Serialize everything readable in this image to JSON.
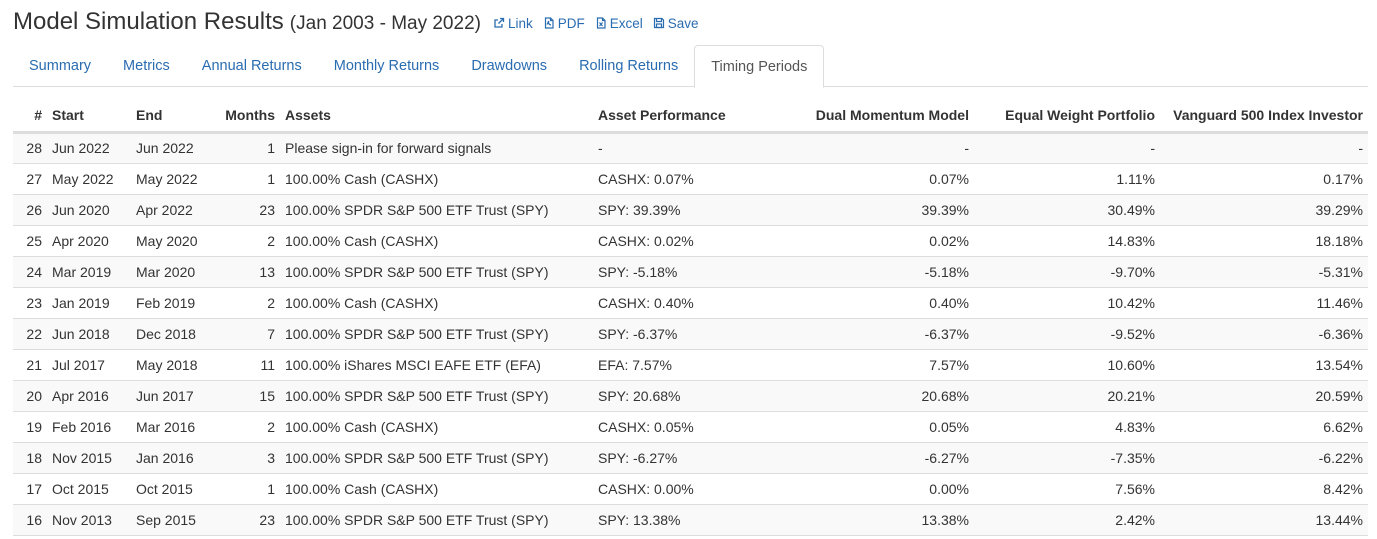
{
  "header": {
    "title": "Model Simulation Results",
    "range": "(Jan 2003 - May 2022)",
    "actions": [
      {
        "label": "Link",
        "icon": "external-link-icon"
      },
      {
        "label": "PDF",
        "icon": "pdf-file-icon"
      },
      {
        "label": "Excel",
        "icon": "excel-file-icon"
      },
      {
        "label": "Save",
        "icon": "floppy-disk-icon"
      }
    ]
  },
  "tabs": [
    {
      "label": "Summary",
      "active": false
    },
    {
      "label": "Metrics",
      "active": false
    },
    {
      "label": "Annual Returns",
      "active": false
    },
    {
      "label": "Monthly Returns",
      "active": false
    },
    {
      "label": "Drawdowns",
      "active": false
    },
    {
      "label": "Rolling Returns",
      "active": false
    },
    {
      "label": "Timing Periods",
      "active": true
    }
  ],
  "table": {
    "columns": [
      "#",
      "Start",
      "End",
      "Months",
      "Assets",
      "Asset Performance",
      "Dual Momentum Model",
      "Equal Weight Portfolio",
      "Vanguard 500 Index Investor"
    ],
    "rows": [
      [
        "28",
        "Jun 2022",
        "Jun 2022",
        "1",
        "Please sign-in for forward signals",
        "-",
        "-",
        "-",
        "-"
      ],
      [
        "27",
        "May 2022",
        "May 2022",
        "1",
        "100.00% Cash (CASHX)",
        "CASHX: 0.07%",
        "0.07%",
        "1.11%",
        "0.17%"
      ],
      [
        "26",
        "Jun 2020",
        "Apr 2022",
        "23",
        "100.00% SPDR S&P 500 ETF Trust (SPY)",
        "SPY: 39.39%",
        "39.39%",
        "30.49%",
        "39.29%"
      ],
      [
        "25",
        "Apr 2020",
        "May 2020",
        "2",
        "100.00% Cash (CASHX)",
        "CASHX: 0.02%",
        "0.02%",
        "14.83%",
        "18.18%"
      ],
      [
        "24",
        "Mar 2019",
        "Mar 2020",
        "13",
        "100.00% SPDR S&P 500 ETF Trust (SPY)",
        "SPY: -5.18%",
        "-5.18%",
        "-9.70%",
        "-5.31%"
      ],
      [
        "23",
        "Jan 2019",
        "Feb 2019",
        "2",
        "100.00% Cash (CASHX)",
        "CASHX: 0.40%",
        "0.40%",
        "10.42%",
        "11.46%"
      ],
      [
        "22",
        "Jun 2018",
        "Dec 2018",
        "7",
        "100.00% SPDR S&P 500 ETF Trust (SPY)",
        "SPY: -6.37%",
        "-6.37%",
        "-9.52%",
        "-6.36%"
      ],
      [
        "21",
        "Jul 2017",
        "May 2018",
        "11",
        "100.00% iShares MSCI EAFE ETF (EFA)",
        "EFA: 7.57%",
        "7.57%",
        "10.60%",
        "13.54%"
      ],
      [
        "20",
        "Apr 2016",
        "Jun 2017",
        "15",
        "100.00% SPDR S&P 500 ETF Trust (SPY)",
        "SPY: 20.68%",
        "20.68%",
        "20.21%",
        "20.59%"
      ],
      [
        "19",
        "Feb 2016",
        "Mar 2016",
        "2",
        "100.00% Cash (CASHX)",
        "CASHX: 0.05%",
        "0.05%",
        "4.83%",
        "6.62%"
      ],
      [
        "18",
        "Nov 2015",
        "Jan 2016",
        "3",
        "100.00% SPDR S&P 500 ETF Trust (SPY)",
        "SPY: -6.27%",
        "-6.27%",
        "-7.35%",
        "-6.22%"
      ],
      [
        "17",
        "Oct 2015",
        "Oct 2015",
        "1",
        "100.00% Cash (CASHX)",
        "CASHX: 0.00%",
        "0.00%",
        "7.56%",
        "8.42%"
      ],
      [
        "16",
        "Nov 2013",
        "Sep 2015",
        "23",
        "100.00% SPDR S&P 500 ETF Trust (SPY)",
        "SPY: 13.38%",
        "13.38%",
        "2.42%",
        "13.44%"
      ]
    ]
  },
  "colors": {
    "link": "#2a6cb0",
    "text": "#333333",
    "border": "#dddddd",
    "stripe": "#f9f9f9"
  }
}
